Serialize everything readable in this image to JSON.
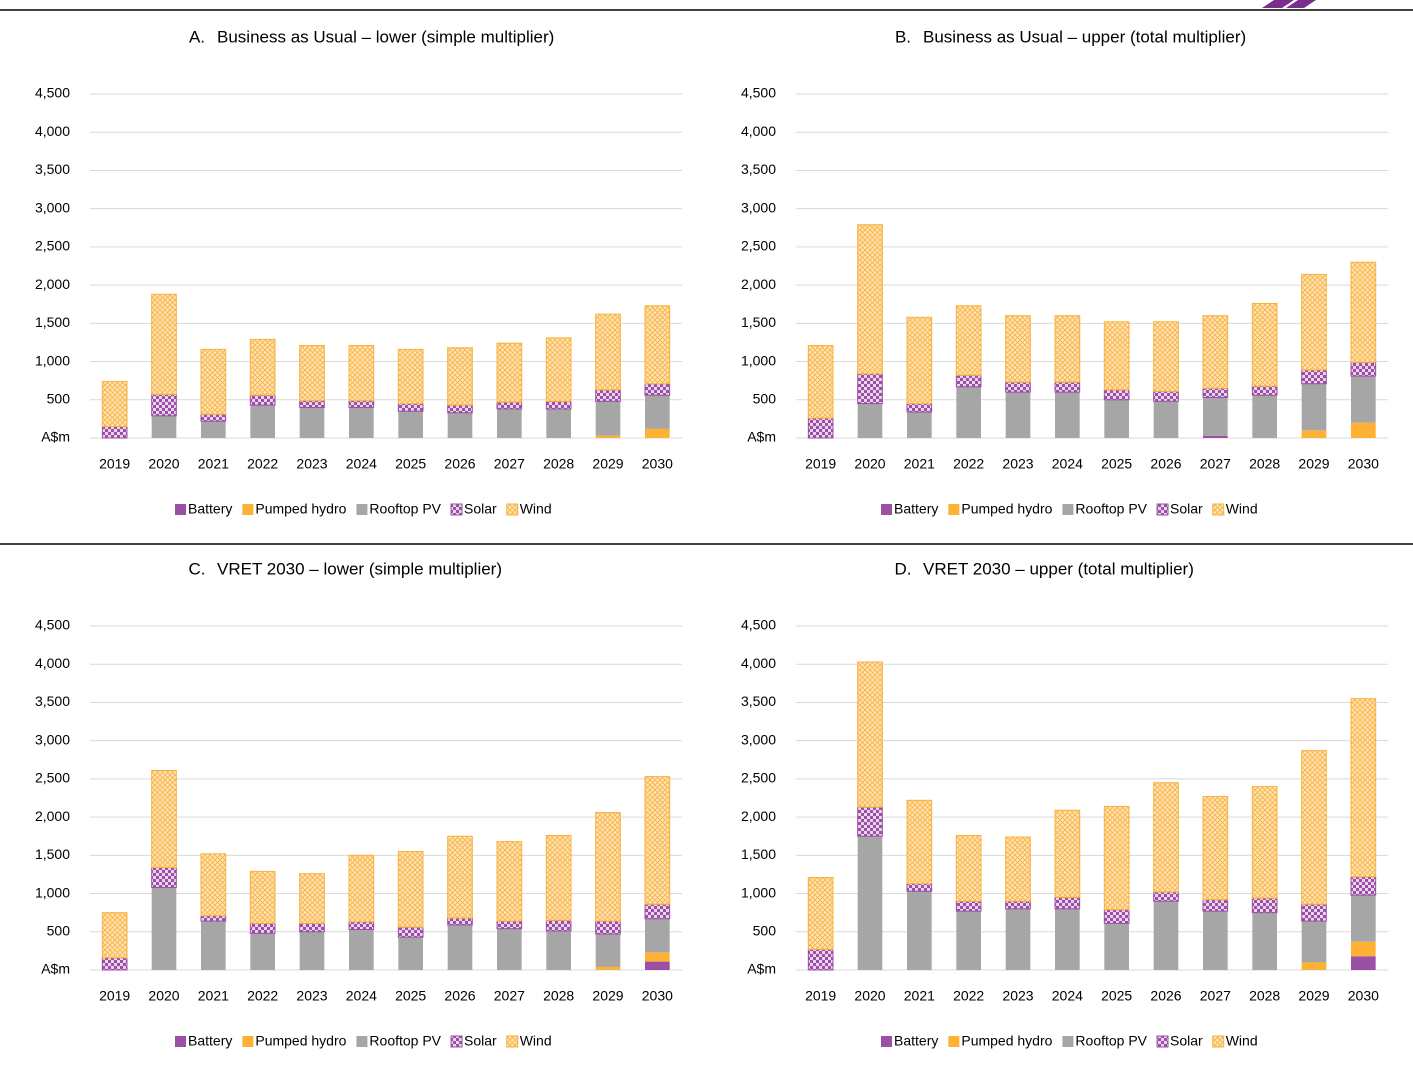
{
  "chart_data": [
    {
      "type": "bar",
      "stacked": true,
      "label": "A.",
      "title": "Business as Usual – lower (simple multiplier)",
      "categories": [
        "2019",
        "2020",
        "2021",
        "2022",
        "2023",
        "2024",
        "2025",
        "2026",
        "2027",
        "2028",
        "2029",
        "2030"
      ],
      "series": [
        {
          "name": "Battery",
          "color": "#9b4fa5",
          "values": [
            0,
            0,
            0,
            0,
            0,
            0,
            0,
            0,
            0,
            0,
            0,
            0
          ]
        },
        {
          "name": "Pumped hydro",
          "color": "#ffb133",
          "values": [
            0,
            0,
            0,
            0,
            0,
            0,
            0,
            0,
            0,
            0,
            30,
            120
          ]
        },
        {
          "name": "Rooftop PV",
          "color": "#a6a6a6",
          "values": [
            0,
            290,
            220,
            430,
            400,
            400,
            350,
            330,
            380,
            380,
            450,
            440
          ]
        },
        {
          "name": "Solar",
          "color": "#9b4fa5",
          "pattern": "checker",
          "values": [
            150,
            280,
            90,
            130,
            90,
            90,
            100,
            100,
            90,
            100,
            150,
            150
          ]
        },
        {
          "name": "Wind",
          "color": "#f9b23c",
          "pattern": "crosshatch",
          "values": [
            590,
            1310,
            850,
            730,
            720,
            720,
            710,
            750,
            770,
            830,
            990,
            1020
          ]
        }
      ],
      "ylim": [
        0,
        4500
      ],
      "yticks": [
        {
          "value": 0,
          "label": "A$m"
        },
        500,
        {
          "value": 1000,
          "label": "1,000"
        },
        {
          "value": 1500,
          "label": "1,500"
        },
        {
          "value": 2000,
          "label": "2,000"
        },
        {
          "value": 2500,
          "label": "2,500"
        },
        {
          "value": 3000,
          "label": "3,000"
        },
        {
          "value": 3500,
          "label": "3,500"
        },
        {
          "value": 4000,
          "label": "4,000"
        },
        {
          "value": 4500,
          "label": "4,500"
        }
      ],
      "grid": true,
      "legend": "bottom"
    },
    {
      "type": "bar",
      "stacked": true,
      "label": "B.",
      "title": "Business as Usual – upper (total multiplier)",
      "categories": [
        "2019",
        "2020",
        "2021",
        "2022",
        "2023",
        "2024",
        "2025",
        "2026",
        "2027",
        "2028",
        "2029",
        "2030"
      ],
      "series": [
        {
          "name": "Battery",
          "color": "#9b4fa5",
          "values": [
            0,
            0,
            0,
            0,
            0,
            0,
            0,
            0,
            30,
            0,
            0,
            0
          ]
        },
        {
          "name": "Pumped hydro",
          "color": "#ffb133",
          "values": [
            0,
            0,
            0,
            0,
            0,
            0,
            0,
            0,
            0,
            0,
            100,
            200
          ]
        },
        {
          "name": "Rooftop PV",
          "color": "#a6a6a6",
          "values": [
            0,
            450,
            340,
            670,
            600,
            600,
            500,
            480,
            500,
            560,
            610,
            610
          ]
        },
        {
          "name": "Solar",
          "color": "#9b4fa5",
          "pattern": "checker",
          "values": [
            260,
            390,
            110,
            150,
            130,
            130,
            130,
            130,
            120,
            120,
            180,
            180
          ]
        },
        {
          "name": "Wind",
          "color": "#f9b23c",
          "pattern": "crosshatch",
          "values": [
            950,
            1950,
            1130,
            910,
            870,
            870,
            890,
            910,
            950,
            1080,
            1250,
            1310
          ]
        }
      ],
      "ylim": [
        0,
        4500
      ],
      "yticks": [
        {
          "value": 0,
          "label": "A$m"
        },
        500,
        {
          "value": 1000,
          "label": "1,000"
        },
        {
          "value": 1500,
          "label": "1,500"
        },
        {
          "value": 2000,
          "label": "2,000"
        },
        {
          "value": 2500,
          "label": "2,500"
        },
        {
          "value": 3000,
          "label": "3,000"
        },
        {
          "value": 3500,
          "label": "3,500"
        },
        {
          "value": 4000,
          "label": "4,000"
        },
        {
          "value": 4500,
          "label": "4,500"
        }
      ],
      "grid": true,
      "legend": "bottom"
    },
    {
      "type": "bar",
      "stacked": true,
      "label": "C.",
      "title": "VRET 2030 – lower (simple multiplier)",
      "categories": [
        "2019",
        "2020",
        "2021",
        "2022",
        "2023",
        "2024",
        "2025",
        "2026",
        "2027",
        "2028",
        "2029",
        "2030"
      ],
      "series": [
        {
          "name": "Battery",
          "color": "#9b4fa5",
          "values": [
            0,
            0,
            0,
            0,
            0,
            0,
            0,
            0,
            0,
            0,
            0,
            110
          ]
        },
        {
          "name": "Pumped hydro",
          "color": "#ffb133",
          "values": [
            0,
            0,
            0,
            0,
            0,
            0,
            0,
            0,
            0,
            0,
            40,
            120
          ]
        },
        {
          "name": "Rooftop PV",
          "color": "#a6a6a6",
          "values": [
            0,
            1080,
            640,
            480,
            500,
            530,
            430,
            590,
            540,
            510,
            430,
            440
          ]
        },
        {
          "name": "Solar",
          "color": "#9b4fa5",
          "pattern": "checker",
          "values": [
            160,
            260,
            70,
            130,
            110,
            100,
            130,
            90,
            100,
            140,
            170,
            190
          ]
        },
        {
          "name": "Wind",
          "color": "#f9b23c",
          "pattern": "crosshatch",
          "values": [
            590,
            1270,
            810,
            680,
            650,
            870,
            990,
            1070,
            1040,
            1110,
            1420,
            1670
          ]
        }
      ],
      "ylim": [
        0,
        4500
      ],
      "yticks": [
        {
          "value": 0,
          "label": "A$m"
        },
        500,
        {
          "value": 1000,
          "label": "1,000"
        },
        {
          "value": 1500,
          "label": "1,500"
        },
        {
          "value": 2000,
          "label": "2,000"
        },
        {
          "value": 2500,
          "label": "2,500"
        },
        {
          "value": 3000,
          "label": "3,000"
        },
        {
          "value": 3500,
          "label": "3,500"
        },
        {
          "value": 4000,
          "label": "4,000"
        },
        {
          "value": 4500,
          "label": "4,500"
        }
      ],
      "grid": true,
      "legend": "bottom"
    },
    {
      "type": "bar",
      "stacked": true,
      "label": "D.",
      "title": "VRET 2030 – upper (total multiplier)",
      "categories": [
        "2019",
        "2020",
        "2021",
        "2022",
        "2023",
        "2024",
        "2025",
        "2026",
        "2027",
        "2028",
        "2029",
        "2030"
      ],
      "series": [
        {
          "name": "Battery",
          "color": "#9b4fa5",
          "values": [
            0,
            0,
            0,
            0,
            0,
            0,
            0,
            0,
            0,
            0,
            0,
            180
          ]
        },
        {
          "name": "Pumped hydro",
          "color": "#ffb133",
          "values": [
            0,
            0,
            0,
            0,
            0,
            0,
            0,
            0,
            0,
            0,
            100,
            190
          ]
        },
        {
          "name": "Rooftop PV",
          "color": "#a6a6a6",
          "values": [
            0,
            1750,
            1030,
            770,
            800,
            800,
            610,
            900,
            770,
            750,
            540,
            610
          ]
        },
        {
          "name": "Solar",
          "color": "#9b4fa5",
          "pattern": "checker",
          "values": [
            270,
            380,
            100,
            130,
            100,
            150,
            180,
            120,
            150,
            190,
            220,
            240
          ]
        },
        {
          "name": "Wind",
          "color": "#f9b23c",
          "pattern": "crosshatch",
          "values": [
            940,
            1900,
            1090,
            860,
            840,
            1140,
            1350,
            1430,
            1350,
            1460,
            2010,
            2330
          ]
        }
      ],
      "ylim": [
        0,
        4500
      ],
      "yticks": [
        {
          "value": 0,
          "label": "A$m"
        },
        500,
        {
          "value": 1000,
          "label": "1,000"
        },
        {
          "value": 1500,
          "label": "1,500"
        },
        {
          "value": 2000,
          "label": "2,000"
        },
        {
          "value": 2500,
          "label": "2,500"
        },
        {
          "value": 3000,
          "label": "3,000"
        },
        {
          "value": 3500,
          "label": "3,500"
        },
        {
          "value": 4000,
          "label": "4,000"
        },
        {
          "value": 4500,
          "label": "4,500"
        }
      ],
      "grid": true,
      "legend": "bottom"
    }
  ]
}
